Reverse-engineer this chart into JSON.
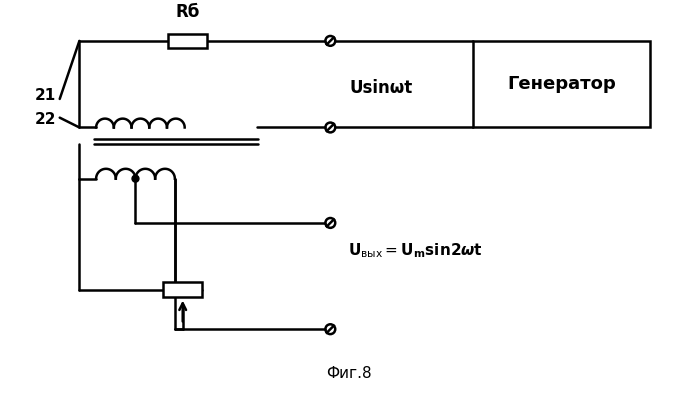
{
  "bg_color": "#ffffff",
  "line_color": "#000000",
  "fig_caption": "Фиг.8",
  "label_21": "21",
  "label_22": "22",
  "label_Rb": "Rб",
  "label_Usin": "Usinωt",
  "label_generator": "Генератор"
}
